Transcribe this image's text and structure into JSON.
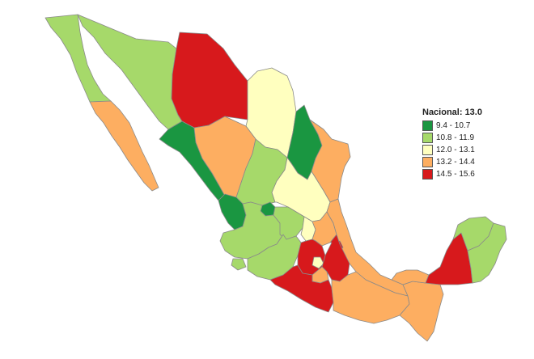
{
  "legend": {
    "title": "Nacional: 13.0",
    "items": [
      {
        "label": "9.4 - 10.7",
        "color": "#1a9641"
      },
      {
        "label": "10.8 - 11.9",
        "color": "#a6d96a"
      },
      {
        "label": "12.0 - 13.1",
        "color": "#ffffbf"
      },
      {
        "label": "13.2 - 14.4",
        "color": "#fdae61"
      },
      {
        "label": "14.5 - 15.6",
        "color": "#d7191c"
      }
    ]
  },
  "states": [
    {
      "name": "baja-california",
      "cls": 1
    },
    {
      "name": "baja-california-sur",
      "cls": 3
    },
    {
      "name": "sonora",
      "cls": 1
    },
    {
      "name": "chihuahua",
      "cls": 4
    },
    {
      "name": "coahuila",
      "cls": 2
    },
    {
      "name": "nuevo-leon",
      "cls": 0
    },
    {
      "name": "tamaulipas",
      "cls": 3
    },
    {
      "name": "sinaloa",
      "cls": 0
    },
    {
      "name": "durango",
      "cls": 3
    },
    {
      "name": "zacatecas",
      "cls": 1
    },
    {
      "name": "nayarit",
      "cls": 0
    },
    {
      "name": "aguascalientes",
      "cls": 0
    },
    {
      "name": "san-luis-potosi",
      "cls": 2
    },
    {
      "name": "jalisco",
      "cls": 1
    },
    {
      "name": "guanajuato",
      "cls": 1
    },
    {
      "name": "queretaro",
      "cls": 2
    },
    {
      "name": "hidalgo",
      "cls": 3
    },
    {
      "name": "veracruz",
      "cls": 3
    },
    {
      "name": "colima",
      "cls": 1
    },
    {
      "name": "michoacan",
      "cls": 1
    },
    {
      "name": "estado-de-mexico",
      "cls": 4
    },
    {
      "name": "ciudad-de-mexico",
      "cls": 2
    },
    {
      "name": "tlaxcala",
      "cls": 4
    },
    {
      "name": "puebla",
      "cls": 4
    },
    {
      "name": "morelos",
      "cls": 3
    },
    {
      "name": "guerrero",
      "cls": 4
    },
    {
      "name": "oaxaca",
      "cls": 3
    },
    {
      "name": "chiapas",
      "cls": 3
    },
    {
      "name": "tabasco",
      "cls": 3
    },
    {
      "name": "campeche",
      "cls": 4
    },
    {
      "name": "yucatan",
      "cls": 1
    },
    {
      "name": "quintana-roo",
      "cls": 1
    }
  ]
}
